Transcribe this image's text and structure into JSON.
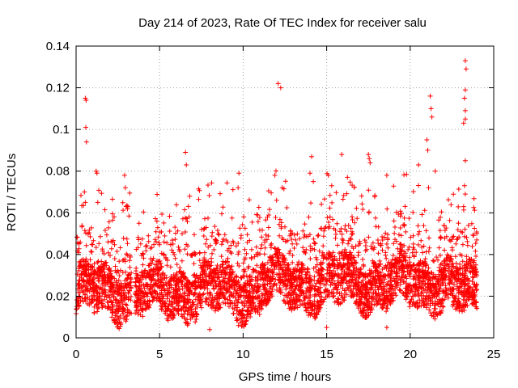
{
  "chart_data": {
    "type": "scatter",
    "title": "Day 214 of 2023, Rate Of TEC Index for receiver salu",
    "xlabel": "GPS time / hours",
    "ylabel": "ROTI / TECUs",
    "xlim": [
      0,
      25
    ],
    "ylim": [
      0,
      0.14
    ],
    "x_ticks": [
      "0",
      "5",
      "10",
      "15",
      "20",
      "25"
    ],
    "y_ticks": [
      "0",
      "0.02",
      "0.04",
      "0.06",
      "0.08",
      "0.1",
      "0.12",
      "0.14"
    ],
    "grid": true,
    "marker": "+",
    "color": "#ff0000",
    "data_gap_hours": [
      3.3,
      3.5
    ],
    "series": [
      {
        "name": "ROTI",
        "outliers": [
          {
            "x": 0.55,
            "y": 0.115
          },
          {
            "x": 0.6,
            "y": 0.114
          },
          {
            "x": 0.58,
            "y": 0.101
          },
          {
            "x": 0.62,
            "y": 0.094
          },
          {
            "x": 0.5,
            "y": 0.07
          },
          {
            "x": 0.55,
            "y": 0.065
          },
          {
            "x": 1.2,
            "y": 0.08
          },
          {
            "x": 1.25,
            "y": 0.079
          },
          {
            "x": 1.3,
            "y": 0.065
          },
          {
            "x": 2.9,
            "y": 0.078
          },
          {
            "x": 2.95,
            "y": 0.072
          },
          {
            "x": 3.1,
            "y": 0.063
          },
          {
            "x": 6.55,
            "y": 0.089
          },
          {
            "x": 6.6,
            "y": 0.083
          },
          {
            "x": 6.8,
            "y": 0.068
          },
          {
            "x": 9.75,
            "y": 0.079
          },
          {
            "x": 9.7,
            "y": 0.072
          },
          {
            "x": 12.1,
            "y": 0.122
          },
          {
            "x": 12.25,
            "y": 0.12
          },
          {
            "x": 11.9,
            "y": 0.078
          },
          {
            "x": 12.0,
            "y": 0.066
          },
          {
            "x": 14.1,
            "y": 0.087
          },
          {
            "x": 14.0,
            "y": 0.079
          },
          {
            "x": 14.2,
            "y": 0.075
          },
          {
            "x": 15.1,
            "y": 0.078
          },
          {
            "x": 15.3,
            "y": 0.073
          },
          {
            "x": 15.9,
            "y": 0.088
          },
          {
            "x": 17.5,
            "y": 0.088
          },
          {
            "x": 17.55,
            "y": 0.086
          },
          {
            "x": 17.6,
            "y": 0.084
          },
          {
            "x": 18.6,
            "y": 0.078
          },
          {
            "x": 21.0,
            "y": 0.095
          },
          {
            "x": 21.05,
            "y": 0.09
          },
          {
            "x": 21.2,
            "y": 0.116
          },
          {
            "x": 21.25,
            "y": 0.11
          },
          {
            "x": 21.3,
            "y": 0.106
          },
          {
            "x": 21.1,
            "y": 0.072
          },
          {
            "x": 20.5,
            "y": 0.083
          },
          {
            "x": 21.5,
            "y": 0.08
          },
          {
            "x": 23.3,
            "y": 0.133
          },
          {
            "x": 23.35,
            "y": 0.129
          },
          {
            "x": 23.3,
            "y": 0.119
          },
          {
            "x": 23.25,
            "y": 0.115
          },
          {
            "x": 23.3,
            "y": 0.109
          },
          {
            "x": 23.3,
            "y": 0.105
          },
          {
            "x": 23.2,
            "y": 0.103
          },
          {
            "x": 23.3,
            "y": 0.085
          },
          {
            "x": 23.25,
            "y": 0.073
          },
          {
            "x": 23.3,
            "y": 0.069
          },
          {
            "x": 23.2,
            "y": 0.063
          },
          {
            "x": 8.0,
            "y": 0.004
          },
          {
            "x": 15.0,
            "y": 0.005
          },
          {
            "x": 18.6,
            "y": 0.005
          }
        ]
      }
    ]
  }
}
